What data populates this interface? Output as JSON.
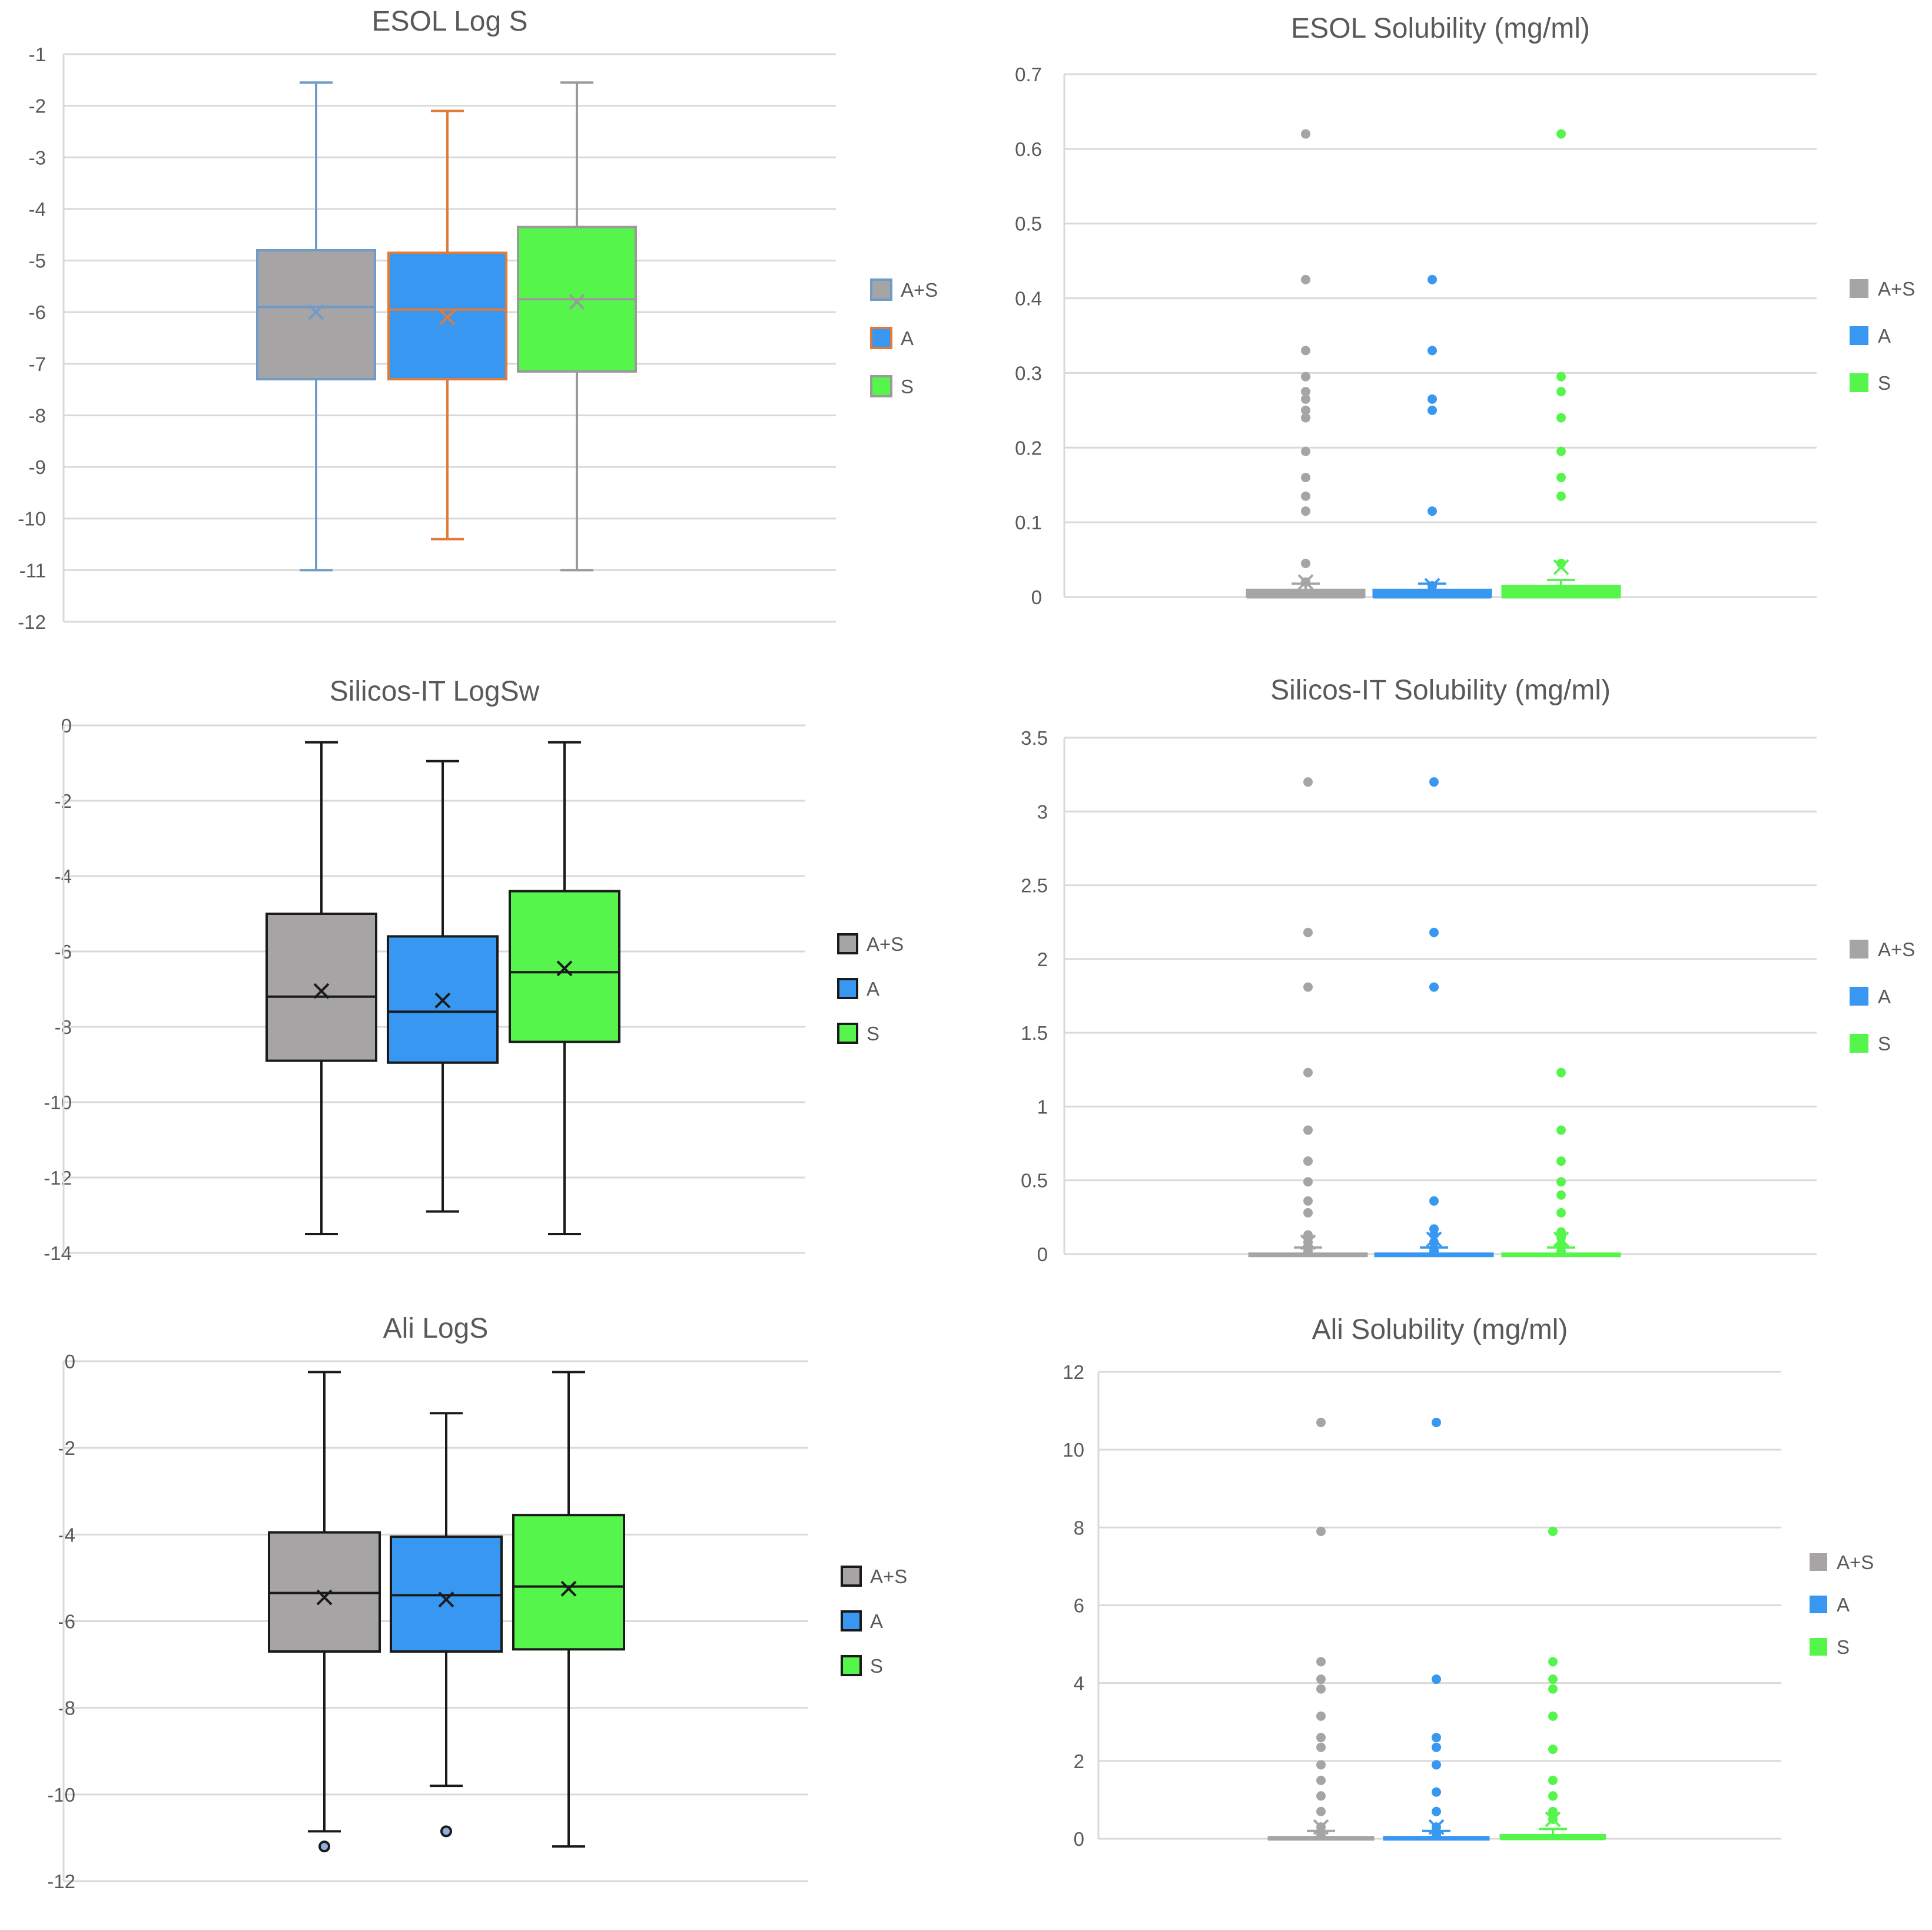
{
  "colors": {
    "A+S": "#a6a4a4",
    "A": "#3897f0",
    "S": "#56f54c",
    "grid": "#d9d9d9",
    "axis": "#d9d9d9",
    "text": "#595959",
    "title": "#595959",
    "black": "#1a1a1a"
  },
  "chart_data": [
    {
      "type": "boxplot",
      "title": "ESOL Log S",
      "ylim": [
        -12,
        -1
      ],
      "yticks": [
        -1,
        -2,
        -3,
        -4,
        -5,
        -6,
        -7,
        -8,
        -9,
        -10,
        -11,
        -12
      ],
      "legend": {
        "position": "right",
        "entries": [
          "A+S",
          "A",
          "S"
        ]
      },
      "series": [
        {
          "name": "A+S",
          "min": -11.0,
          "q1": -7.3,
          "median": -5.9,
          "q3": -4.8,
          "max": -1.55,
          "mean": -6.0,
          "outliers": [],
          "stroke": "#6f9bc8"
        },
        {
          "name": "A",
          "min": -10.4,
          "q1": -7.3,
          "median": -5.95,
          "q3": -4.85,
          "max": -2.1,
          "mean": -6.1,
          "outliers": [],
          "stroke": "#e07b39"
        },
        {
          "name": "S",
          "min": -11.0,
          "q1": -7.15,
          "median": -5.75,
          "q3": -4.35,
          "max": -1.55,
          "mean": -5.8,
          "outliers": [],
          "stroke": "#9a9a9a"
        }
      ]
    },
    {
      "type": "scatter",
      "title": "ESOL Solubility (mg/ml)",
      "ylim": [
        0,
        0.7
      ],
      "yticks": [
        0.7,
        0.6,
        0.5,
        0.4,
        0.3,
        0.2,
        0.1,
        0
      ],
      "legend": {
        "position": "right",
        "entries": [
          "A+S",
          "A",
          "S"
        ]
      },
      "series": [
        {
          "name": "A+S",
          "points": [
            0.62,
            0.425,
            0.33,
            0.295,
            0.275,
            0.265,
            0.25,
            0.24,
            0.195,
            0.16,
            0.135,
            0.115,
            0.045,
            0.02
          ],
          "q3": 0.01,
          "mean": 0.02
        },
        {
          "name": "A",
          "points": [
            0.425,
            0.33,
            0.265,
            0.25,
            0.115,
            0.015
          ],
          "q3": 0.01,
          "mean": 0.015
        },
        {
          "name": "S",
          "points": [
            0.62,
            0.295,
            0.275,
            0.24,
            0.195,
            0.16,
            0.135,
            0.045
          ],
          "q3": 0.015,
          "mean": 0.04
        }
      ]
    },
    {
      "type": "boxplot",
      "title": "Silicos-IT LogSw",
      "ylim": [
        -14,
        0
      ],
      "yticks": [
        0,
        -2,
        -4,
        -6,
        -8,
        -10,
        -12,
        -14
      ],
      "legend": {
        "position": "right",
        "entries": [
          "A+S",
          "A",
          "S"
        ]
      },
      "series": [
        {
          "name": "A+S",
          "min": -13.5,
          "q1": -8.9,
          "median": -7.2,
          "q3": -5.0,
          "max": -0.45,
          "mean": -7.05,
          "outliers": [],
          "stroke": "#1a1a1a"
        },
        {
          "name": "A",
          "min": -12.9,
          "q1": -8.95,
          "median": -7.6,
          "q3": -5.6,
          "max": -0.95,
          "mean": -7.3,
          "outliers": [],
          "stroke": "#1a1a1a"
        },
        {
          "name": "S",
          "min": -13.5,
          "q1": -8.4,
          "median": -6.55,
          "q3": -4.4,
          "max": -0.45,
          "mean": -6.45,
          "outliers": [],
          "stroke": "#1a1a1a"
        }
      ]
    },
    {
      "type": "scatter",
      "title": "Silicos-IT Solubility (mg/ml)",
      "ylim": [
        0,
        3.5
      ],
      "yticks": [
        3.5,
        3,
        2.5,
        2,
        1.5,
        1,
        0.5,
        0
      ],
      "legend": {
        "position": "right",
        "entries": [
          "A+S",
          "A",
          "S"
        ]
      },
      "series": [
        {
          "name": "A+S",
          "points": [
            3.2,
            2.18,
            1.81,
            1.23,
            0.84,
            0.63,
            0.49,
            0.36,
            0.28,
            0.13,
            0.08,
            0.04,
            0.02
          ],
          "q3": 0.005,
          "mean": 0.08
        },
        {
          "name": "A",
          "points": [
            3.2,
            2.18,
            1.81,
            0.36,
            0.17,
            0.13,
            0.08,
            0.04,
            0.02
          ],
          "q3": 0.005,
          "mean": 0.1
        },
        {
          "name": "S",
          "points": [
            1.23,
            0.84,
            0.63,
            0.49,
            0.4,
            0.28,
            0.15,
            0.11,
            0.05,
            0.02
          ],
          "q3": 0.005,
          "mean": 0.1
        }
      ]
    },
    {
      "type": "boxplot",
      "title": "Ali LogS",
      "ylim": [
        -12,
        0
      ],
      "yticks": [
        0,
        -2,
        -4,
        -6,
        -8,
        -10,
        -12
      ],
      "legend": {
        "position": "right",
        "entries": [
          "A+S",
          "A",
          "S"
        ]
      },
      "series": [
        {
          "name": "A+S",
          "min": -10.85,
          "q1": -6.7,
          "median": -5.35,
          "q3": -3.95,
          "max": -0.25,
          "mean": -5.45,
          "outliers": [
            -11.2
          ],
          "stroke": "#1a1a1a"
        },
        {
          "name": "A",
          "min": -9.8,
          "q1": -6.7,
          "median": -5.4,
          "q3": -4.05,
          "max": -1.2,
          "mean": -5.5,
          "outliers": [
            -10.85
          ],
          "stroke": "#1a1a1a"
        },
        {
          "name": "S",
          "min": -11.2,
          "q1": -6.65,
          "median": -5.2,
          "q3": -3.55,
          "max": -0.25,
          "mean": -5.25,
          "outliers": [],
          "stroke": "#1a1a1a"
        }
      ]
    },
    {
      "type": "scatter",
      "title": "Ali Solubility (mg/ml)",
      "ylim": [
        0,
        12
      ],
      "yticks": [
        12,
        10,
        8,
        6,
        4,
        2,
        0
      ],
      "legend": {
        "position": "right",
        "entries": [
          "A+S",
          "A",
          "S"
        ]
      },
      "series": [
        {
          "name": "A+S",
          "points": [
            10.7,
            7.9,
            4.55,
            4.1,
            3.85,
            3.15,
            2.6,
            2.35,
            1.9,
            1.5,
            1.1,
            0.7,
            0.3,
            0.1
          ],
          "q3": 0.05,
          "mean": 0.3
        },
        {
          "name": "A",
          "points": [
            10.7,
            4.1,
            2.6,
            2.35,
            1.9,
            1.2,
            0.7,
            0.3,
            0.1
          ],
          "q3": 0.05,
          "mean": 0.3
        },
        {
          "name": "S",
          "points": [
            7.9,
            4.55,
            4.1,
            3.85,
            3.15,
            2.3,
            1.5,
            1.1,
            0.7,
            0.5
          ],
          "q3": 0.1,
          "mean": 0.5
        }
      ]
    }
  ]
}
